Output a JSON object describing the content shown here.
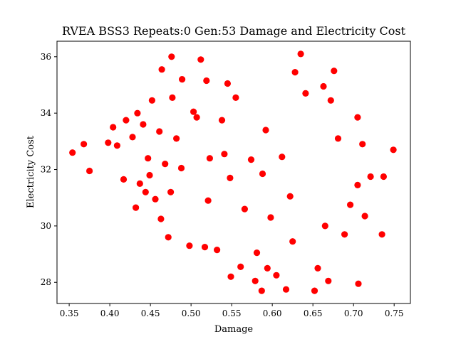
{
  "chart_data": {
    "type": "scatter",
    "title": "RVEA BSS3 Repeats:0 Gen:53 Damage and Electricity Cost",
    "xlabel": "Damage",
    "ylabel": "Electricity Cost",
    "xlim": [
      0.335,
      0.77
    ],
    "ylim": [
      27.25,
      36.55
    ],
    "xticks": [
      0.35,
      0.4,
      0.45,
      0.5,
      0.55,
      0.6,
      0.65,
      0.7,
      0.75
    ],
    "xtick_labels": [
      "0.35",
      "0.40",
      "0.45",
      "0.50",
      "0.55",
      "0.60",
      "0.65",
      "0.70",
      "0.75"
    ],
    "yticks": [
      28,
      30,
      32,
      34,
      36
    ],
    "ytick_labels": [
      "28",
      "30",
      "32",
      "34",
      "36"
    ],
    "grid": false,
    "legend": "none",
    "marker_color": "#ff0000",
    "series": [
      {
        "x": [
          0.354,
          0.368,
          0.375,
          0.398,
          0.404,
          0.409,
          0.417,
          0.42,
          0.428,
          0.432,
          0.434,
          0.437,
          0.441,
          0.444,
          0.447,
          0.452,
          0.456,
          0.461,
          0.464,
          0.468,
          0.472,
          0.476,
          0.477,
          0.482,
          0.489,
          0.498,
          0.503,
          0.512,
          0.517,
          0.519,
          0.523,
          0.532,
          0.538,
          0.545,
          0.549,
          0.555,
          0.561,
          0.566,
          0.574,
          0.579,
          0.587,
          0.594,
          0.605,
          0.612,
          0.617,
          0.625,
          0.628,
          0.635,
          0.641,
          0.652,
          0.656,
          0.663,
          0.669,
          0.676,
          0.681,
          0.689,
          0.696,
          0.705,
          0.706,
          0.711,
          0.714,
          0.721,
          0.735,
          0.737,
          0.749,
          0.705,
          0.672,
          0.665,
          0.622,
          0.598,
          0.592,
          0.588,
          0.581,
          0.548,
          0.541,
          0.521,
          0.507,
          0.488,
          0.475,
          0.463,
          0.449
        ],
        "y": [
          32.6,
          32.9,
          31.95,
          32.95,
          33.5,
          32.85,
          31.65,
          33.75,
          33.15,
          30.65,
          34.0,
          31.5,
          33.6,
          31.2,
          32.4,
          34.45,
          30.95,
          33.35,
          35.55,
          32.2,
          29.6,
          36.0,
          34.55,
          33.1,
          35.2,
          29.3,
          34.05,
          35.9,
          29.25,
          35.15,
          32.4,
          29.15,
          33.75,
          35.05,
          28.2,
          34.55,
          28.55,
          30.6,
          32.35,
          28.05,
          27.7,
          28.5,
          28.25,
          32.45,
          27.75,
          29.45,
          35.45,
          36.1,
          34.7,
          27.7,
          28.5,
          34.95,
          28.05,
          35.5,
          33.1,
          29.7,
          30.75,
          33.85,
          27.95,
          32.9,
          30.35,
          31.75,
          29.7,
          31.75,
          32.7,
          31.45,
          34.45,
          30.0,
          31.05,
          30.3,
          33.4,
          31.85,
          29.05,
          31.7,
          32.55,
          30.9,
          33.85,
          32.05,
          31.2,
          30.25,
          31.8
        ]
      }
    ]
  }
}
